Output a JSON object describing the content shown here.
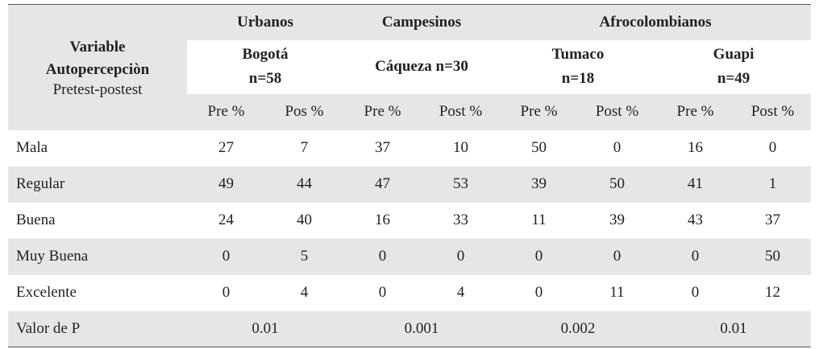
{
  "header": {
    "variable": "Variable",
    "variable2": "Autopercepciòn",
    "variable3": "Pretest-postest",
    "groups": [
      "Urbanos",
      "Campesinos",
      "Afrocolombianos"
    ],
    "sites": [
      {
        "name": "Bogotá",
        "n": "n=58"
      },
      {
        "name": "Cáqueza n=30",
        "n": ""
      },
      {
        "name": "Tumaco",
        "n": "n=18"
      },
      {
        "name": "Guapi",
        "n": "n=49"
      }
    ],
    "cols": [
      "Pre %",
      "Pos %",
      "Pre %",
      "Post %",
      "Pre %",
      "Post %",
      "Pre %",
      "Post %"
    ]
  },
  "rows": [
    {
      "label": "Mala",
      "values": [
        "27",
        "7",
        "37",
        "10",
        "50",
        "0",
        "16",
        "0"
      ]
    },
    {
      "label": "Regular",
      "values": [
        "49",
        "44",
        "47",
        "53",
        "39",
        "50",
        "41",
        "1"
      ]
    },
    {
      "label": "Buena",
      "values": [
        "24",
        "40",
        "16",
        "33",
        "11",
        "39",
        "43",
        "37"
      ]
    },
    {
      "label": "Muy Buena",
      "values": [
        "0",
        "5",
        "0",
        "0",
        "0",
        "0",
        "0",
        "50"
      ]
    },
    {
      "label": "Excelente",
      "values": [
        "0",
        "4",
        "0",
        "4",
        "0",
        "11",
        "0",
        "12"
      ]
    }
  ],
  "pvalue": {
    "label": "Valor de P",
    "values": [
      "0.01",
      "0.001",
      "0.002",
      "0.01"
    ]
  }
}
